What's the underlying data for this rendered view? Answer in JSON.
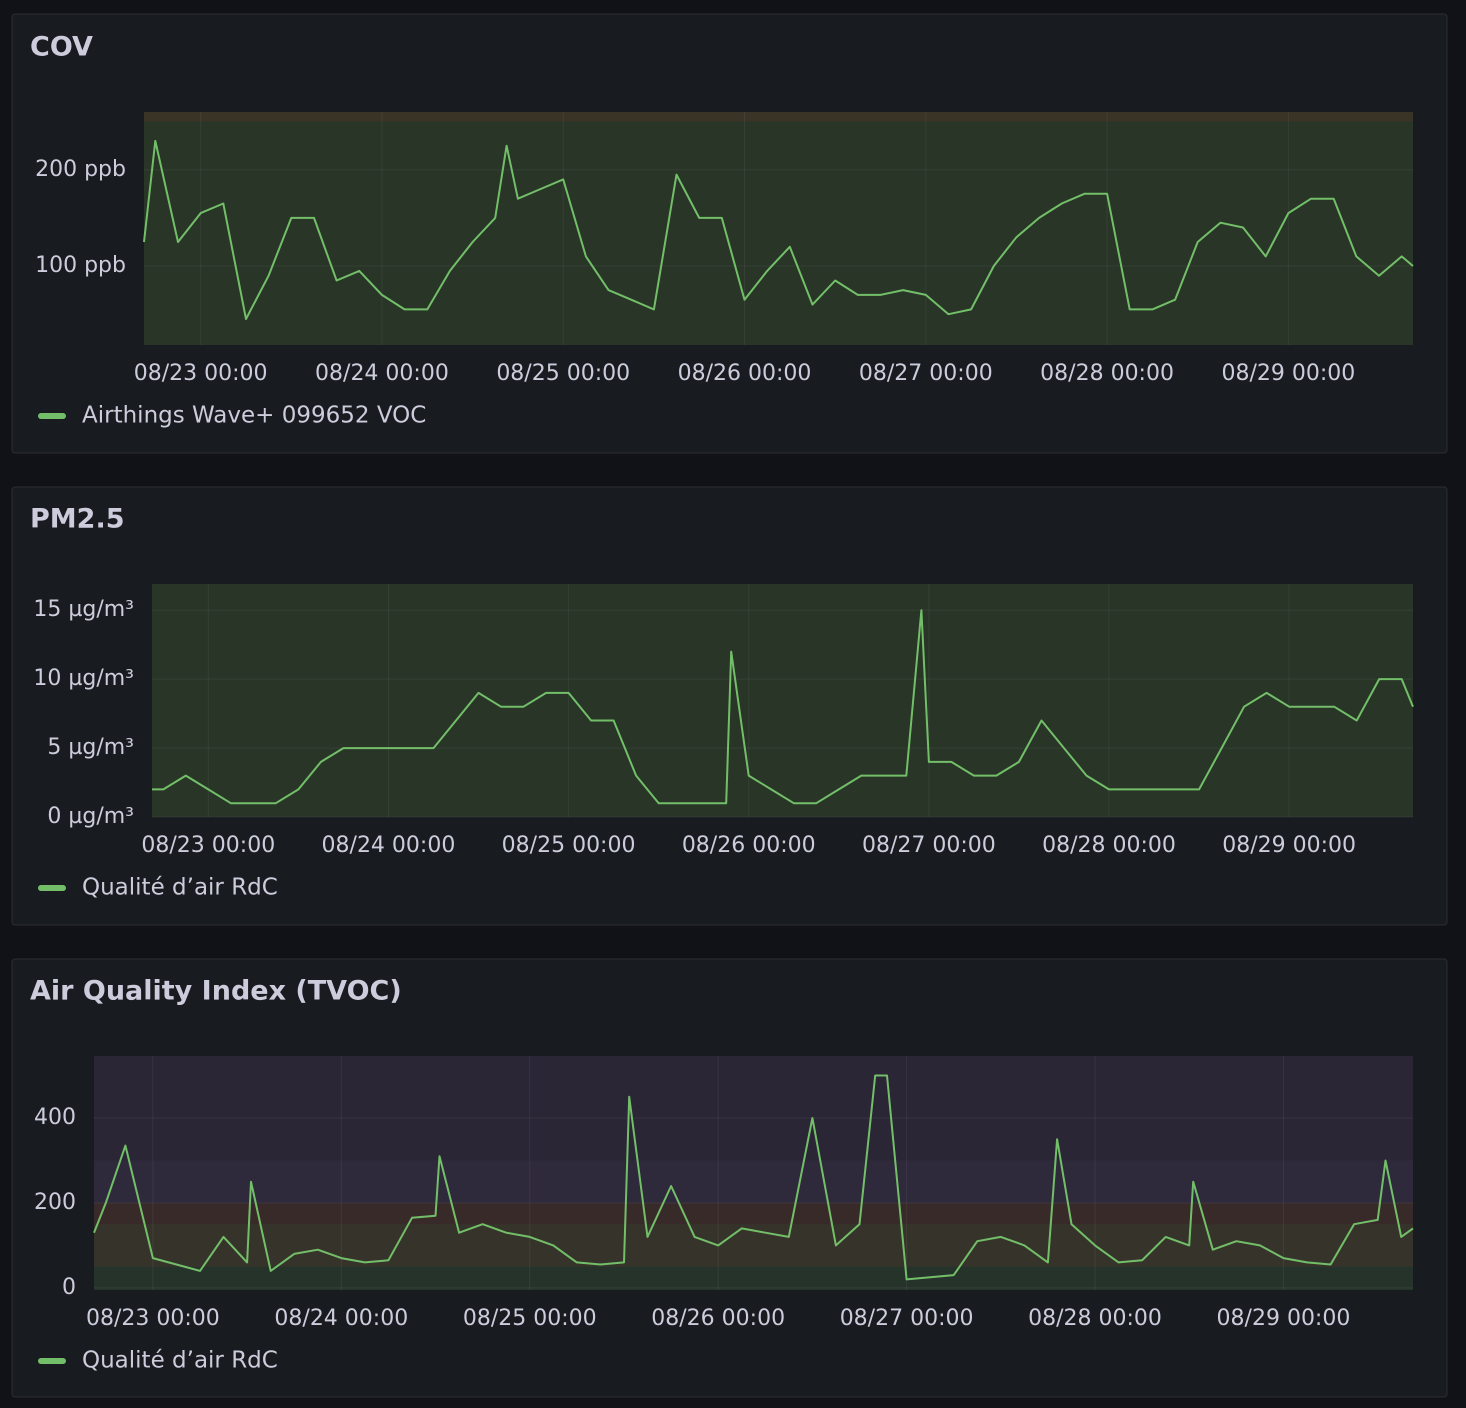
{
  "chart_data": [
    {
      "type": "line",
      "title": "COV",
      "x": [
        "08/22 16:30",
        "08/22 18:00",
        "08/22 21:00",
        "08/23 00:00",
        "08/23 03:00",
        "08/23 06:00",
        "08/23 09:00",
        "08/23 12:00",
        "08/23 15:00",
        "08/23 18:00",
        "08/23 21:00",
        "08/24 00:00",
        "08/24 03:00",
        "08/24 06:00",
        "08/24 09:00",
        "08/24 12:00",
        "08/24 15:00",
        "08/24 16:30",
        "08/24 18:00",
        "08/24 21:00",
        "08/25 00:00",
        "08/25 03:00",
        "08/25 06:00",
        "08/25 09:00",
        "08/25 12:00",
        "08/25 15:00",
        "08/25 18:00",
        "08/25 21:00",
        "08/26 00:00",
        "08/26 03:00",
        "08/26 06:00",
        "08/26 09:00",
        "08/26 12:00",
        "08/26 15:00",
        "08/26 18:00",
        "08/26 21:00",
        "08/27 00:00",
        "08/27 03:00",
        "08/27 06:00",
        "08/27 09:00",
        "08/27 12:00",
        "08/27 15:00",
        "08/27 18:00",
        "08/27 21:00",
        "08/28 00:00",
        "08/28 03:00",
        "08/28 06:00",
        "08/28 09:00",
        "08/28 12:00",
        "08/28 15:00",
        "08/28 18:00",
        "08/28 21:00",
        "08/29 00:00",
        "08/29 03:00",
        "08/29 06:00",
        "08/29 09:00",
        "08/29 12:00",
        "08/29 15:00",
        "08/29 16:30"
      ],
      "series": [
        {
          "name": "Airthings Wave+ 099652 VOC",
          "color": "#73bf69",
          "values": [
            125,
            230,
            125,
            155,
            165,
            45,
            90,
            150,
            150,
            85,
            95,
            70,
            55,
            55,
            95,
            125,
            150,
            225,
            170,
            180,
            190,
            110,
            75,
            65,
            55,
            195,
            150,
            150,
            65,
            95,
            120,
            60,
            85,
            70,
            70,
            75,
            70,
            50,
            55,
            100,
            130,
            150,
            165,
            175,
            175,
            55,
            55,
            65,
            125,
            145,
            140,
            110,
            155,
            170,
            170,
            110,
            90,
            110,
            100
          ]
        }
      ],
      "xlim": [
        "08/22 16:30",
        "08/29 16:30"
      ],
      "xticks": [
        "08/23 00:00",
        "08/24 00:00",
        "08/25 00:00",
        "08/26 00:00",
        "08/27 00:00",
        "08/28 00:00",
        "08/29 00:00"
      ],
      "ylim": [
        18,
        260
      ],
      "yticks": [
        {
          "value": 100,
          "label": "100 ppb"
        },
        {
          "value": 200,
          "label": "200 ppb"
        }
      ],
      "grid": true,
      "legend": "bottom-left",
      "base_color": "#283527",
      "thresholds": [
        {
          "value": 250,
          "color": "#3a3426"
        }
      ]
    },
    {
      "type": "line",
      "title": "PM2.5",
      "x": [
        "08/22 16:30",
        "08/22 18:00",
        "08/22 21:00",
        "08/23 00:00",
        "08/23 03:00",
        "08/23 06:00",
        "08/23 09:00",
        "08/23 12:00",
        "08/23 15:00",
        "08/23 18:00",
        "08/23 21:00",
        "08/24 00:00",
        "08/24 03:00",
        "08/24 06:00",
        "08/24 09:00",
        "08/24 12:00",
        "08/24 15:00",
        "08/24 18:00",
        "08/24 21:00",
        "08/25 00:00",
        "08/25 03:00",
        "08/25 06:00",
        "08/25 09:00",
        "08/25 12:00",
        "08/25 15:00",
        "08/25 18:00",
        "08/25 21:00",
        "08/25 21:40",
        "08/26 00:00",
        "08/26 03:00",
        "08/26 06:00",
        "08/26 09:00",
        "08/26 12:00",
        "08/26 15:00",
        "08/26 18:00",
        "08/26 21:00",
        "08/26 23:00",
        "08/27 00:00",
        "08/27 03:00",
        "08/27 06:00",
        "08/27 09:00",
        "08/27 12:00",
        "08/27 15:00",
        "08/27 18:00",
        "08/27 21:00",
        "08/28 00:00",
        "08/28 03:00",
        "08/28 06:00",
        "08/28 09:00",
        "08/28 12:00",
        "08/28 15:00",
        "08/28 18:00",
        "08/28 21:00",
        "08/29 00:00",
        "08/29 03:00",
        "08/29 06:00",
        "08/29 09:00",
        "08/29 12:00",
        "08/29 15:00",
        "08/29 16:30"
      ],
      "series": [
        {
          "name": "Qualité d’air RdC",
          "color": "#73bf69",
          "values": [
            2,
            2,
            3,
            2,
            1,
            1,
            1,
            2,
            4,
            5,
            5,
            5,
            5,
            5,
            7,
            9,
            8,
            8,
            9,
            9,
            7,
            7,
            3,
            1,
            1,
            1,
            1,
            12,
            3,
            2,
            1,
            1,
            2,
            3,
            3,
            3,
            15,
            4,
            4,
            3,
            3,
            4,
            7,
            5,
            3,
            2,
            2,
            2,
            2,
            2,
            5,
            8,
            9,
            8,
            8,
            8,
            7,
            10,
            10,
            8
          ]
        }
      ],
      "xlim": [
        "08/22 16:30",
        "08/29 16:30"
      ],
      "xticks": [
        "08/23 00:00",
        "08/24 00:00",
        "08/25 00:00",
        "08/26 00:00",
        "08/27 00:00",
        "08/28 00:00",
        "08/29 00:00"
      ],
      "ylim": [
        0,
        16.9
      ],
      "yticks": [
        {
          "value": 0,
          "label": "0 µg/m³"
        },
        {
          "value": 5,
          "label": "5 µg/m³"
        },
        {
          "value": 10,
          "label": "10 µg/m³"
        },
        {
          "value": 15,
          "label": "15 µg/m³"
        }
      ],
      "grid": true,
      "legend": "bottom-left",
      "base_color": "#283527",
      "thresholds": []
    },
    {
      "type": "line",
      "title": "Air Quality Index (TVOC)",
      "x": [
        "08/22 16:30",
        "08/22 18:00",
        "08/22 20:30",
        "08/23 00:00",
        "08/23 03:00",
        "08/23 06:00",
        "08/23 09:00",
        "08/23 12:00",
        "08/23 12:30",
        "08/23 15:00",
        "08/23 18:00",
        "08/23 21:00",
        "08/24 00:00",
        "08/24 03:00",
        "08/24 06:00",
        "08/24 09:00",
        "08/24 12:00",
        "08/24 12:30",
        "08/24 15:00",
        "08/24 18:00",
        "08/24 21:00",
        "08/25 00:00",
        "08/25 03:00",
        "08/25 06:00",
        "08/25 09:00",
        "08/25 12:00",
        "08/25 12:40",
        "08/25 15:00",
        "08/25 18:00",
        "08/25 21:00",
        "08/26 00:00",
        "08/26 03:00",
        "08/26 06:00",
        "08/26 09:00",
        "08/26 12:00",
        "08/26 15:00",
        "08/26 18:00",
        "08/26 20:00",
        "08/26 21:30",
        "08/27 00:00",
        "08/27 03:00",
        "08/27 06:00",
        "08/27 09:00",
        "08/27 12:00",
        "08/27 15:00",
        "08/27 18:00",
        "08/27 19:10",
        "08/27 21:00",
        "08/28 00:00",
        "08/28 03:00",
        "08/28 06:00",
        "08/28 09:00",
        "08/28 12:00",
        "08/28 12:30",
        "08/28 15:00",
        "08/28 18:00",
        "08/28 21:00",
        "08/29 00:00",
        "08/29 03:00",
        "08/29 06:00",
        "08/29 09:00",
        "08/29 12:00",
        "08/29 13:00",
        "08/29 15:00",
        "08/29 16:30"
      ],
      "series": [
        {
          "name": "Qualité d’air RdC",
          "color": "#73bf69",
          "values": [
            130,
            200,
            335,
            70,
            55,
            40,
            120,
            60,
            250,
            40,
            80,
            90,
            70,
            60,
            65,
            165,
            170,
            310,
            130,
            150,
            130,
            120,
            100,
            60,
            55,
            60,
            450,
            120,
            240,
            120,
            100,
            140,
            130,
            120,
            400,
            100,
            150,
            500,
            500,
            20,
            25,
            30,
            110,
            120,
            100,
            60,
            350,
            150,
            100,
            60,
            65,
            120,
            100,
            250,
            90,
            110,
            100,
            70,
            60,
            55,
            150,
            160,
            300,
            120,
            140
          ]
        }
      ],
      "xlim": [
        "08/22 16:30",
        "08/29 16:30"
      ],
      "xticks": [
        "08/23 00:00",
        "08/24 00:00",
        "08/25 00:00",
        "08/26 00:00",
        "08/27 00:00",
        "08/28 00:00",
        "08/29 00:00"
      ],
      "ylim": [
        -5,
        546
      ],
      "yticks": [
        0,
        200,
        400
      ],
      "grid": true,
      "legend": "bottom-left",
      "base_color": "#26332a",
      "thresholds": [
        {
          "value": 50,
          "color": "#36342a"
        },
        {
          "value": 150,
          "color": "#392a2a"
        },
        {
          "value": 200,
          "color": "#2f2a3b"
        },
        {
          "value": 300,
          "color": "#2a2636"
        }
      ]
    }
  ]
}
